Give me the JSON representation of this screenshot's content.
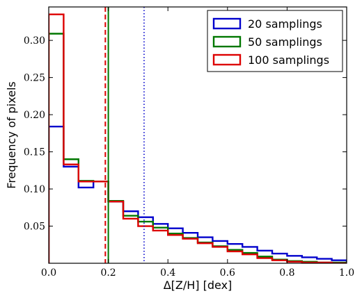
{
  "chart_data": {
    "type": "histogram",
    "xlabel": "Δ[Z/H] [dex]",
    "ylabel": "Frequency of pixels",
    "xlim": [
      0.0,
      1.0
    ],
    "ylim": [
      0.0,
      0.345
    ],
    "xticks": [
      0.0,
      0.2,
      0.4,
      0.6,
      0.8,
      1.0
    ],
    "xtick_labels": [
      "0.0",
      "0.2",
      "0.4",
      "0.6",
      "0.8",
      "1.0"
    ],
    "yticks": [
      0.05,
      0.1,
      0.15,
      0.2,
      0.25,
      0.3
    ],
    "ytick_labels": [
      "0.05",
      "0.10",
      "0.15",
      "0.20",
      "0.25",
      "0.30"
    ],
    "bin_edges": [
      0.0,
      0.05,
      0.1,
      0.15,
      0.2,
      0.25,
      0.3,
      0.35,
      0.4,
      0.45,
      0.5,
      0.55,
      0.6,
      0.65,
      0.7,
      0.75,
      0.8,
      0.85,
      0.9,
      0.95,
      1.0
    ],
    "legend_position": "top-right",
    "grid": false,
    "series": [
      {
        "name": "20 samplings",
        "color": "#0000cc",
        "values": [
          0.184,
          0.13,
          0.102,
          0.11,
          0.083,
          0.07,
          0.062,
          0.053,
          0.047,
          0.041,
          0.035,
          0.03,
          0.026,
          0.022,
          0.017,
          0.013,
          0.01,
          0.008,
          0.006,
          0.004
        ],
        "marker_x": 0.32,
        "marker_style": "dotted"
      },
      {
        "name": "50 samplings",
        "color": "#007700",
        "values": [
          0.309,
          0.14,
          0.111,
          0.11,
          0.084,
          0.064,
          0.056,
          0.048,
          0.04,
          0.034,
          0.028,
          0.023,
          0.018,
          0.014,
          0.009,
          0.005,
          0.003,
          0.002,
          0.001,
          0.001
        ],
        "marker_x": 0.2,
        "marker_style": "solid"
      },
      {
        "name": "100 samplings",
        "color": "#dd0000",
        "values": [
          0.335,
          0.133,
          0.11,
          0.11,
          0.083,
          0.06,
          0.05,
          0.044,
          0.038,
          0.033,
          0.027,
          0.022,
          0.016,
          0.012,
          0.007,
          0.004,
          0.002,
          0.001,
          0.001,
          0.0
        ],
        "marker_x": 0.19,
        "marker_style": "dashed"
      }
    ]
  }
}
